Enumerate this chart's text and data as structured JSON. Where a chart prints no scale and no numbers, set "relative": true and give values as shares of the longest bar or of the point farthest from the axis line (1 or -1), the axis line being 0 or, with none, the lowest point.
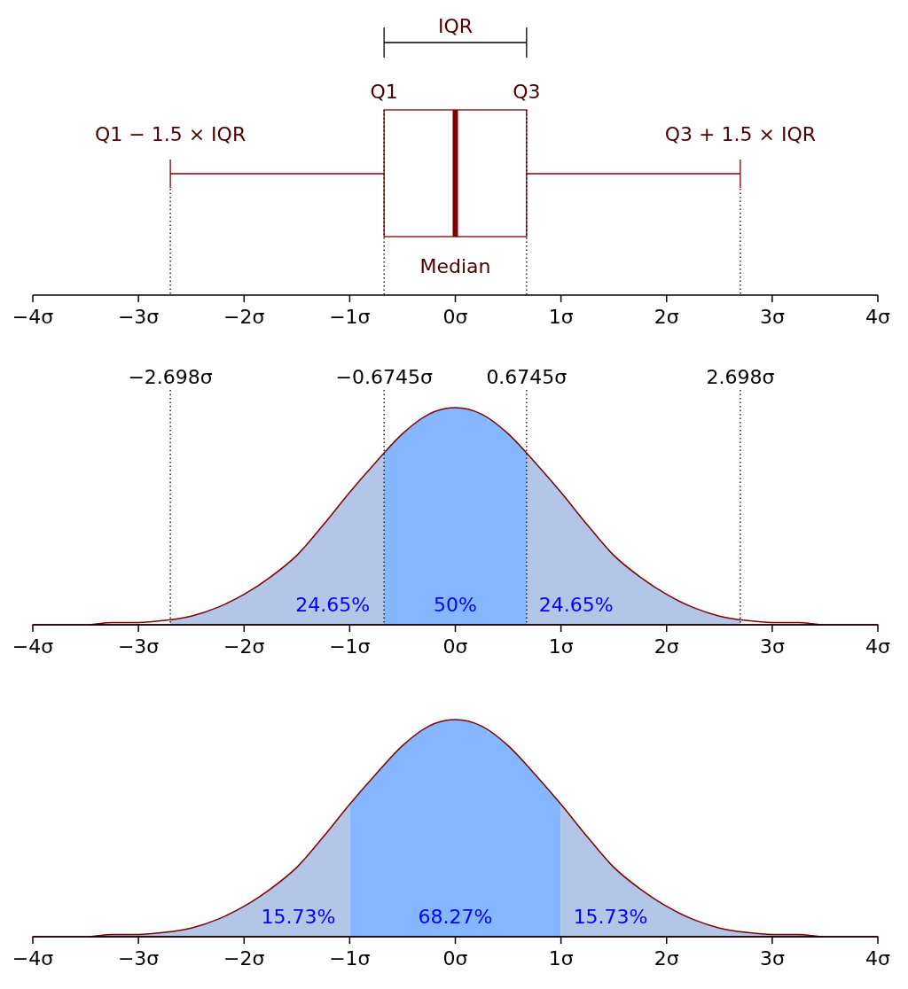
{
  "chart_data": [
    {
      "type": "box",
      "orientation": "horizontal",
      "categories": [
        null
      ],
      "color": "#800000",
      "boxes": [
        {
          "low": -2.698,
          "q1": -0.6745,
          "median": 0,
          "q3": 0.6745,
          "high": 2.698
        }
      ],
      "xlim": [
        -4,
        4
      ],
      "xticks": [
        {
          "value": -4,
          "label": "−4σ"
        },
        {
          "value": -3,
          "label": "−3σ"
        },
        {
          "value": -2,
          "label": "−2σ"
        },
        {
          "value": -1,
          "label": "−1σ"
        },
        {
          "value": 0,
          "label": "0σ"
        },
        {
          "value": 1,
          "label": "1σ"
        },
        {
          "value": 2,
          "label": "2σ"
        },
        {
          "value": 3,
          "label": "3σ"
        },
        {
          "value": 4,
          "label": "4σ"
        }
      ],
      "tick_labels": "x",
      "ref_lines": [
        {
          "axis": "x",
          "value": -2.698,
          "line_style": "dotted"
        },
        {
          "axis": "x",
          "value": -0.6745,
          "line_style": "dotted"
        },
        {
          "axis": "x",
          "value": 0.6745,
          "line_style": "dotted"
        },
        {
          "axis": "x",
          "value": 2.698,
          "line_style": "dotted"
        }
      ],
      "annotations": [
        "IQR",
        "Q1",
        "Q3",
        "Q1 − 1.5 × IQR",
        "Q3 + 1.5 × IQR",
        "Median"
      ]
    },
    {
      "type": "area",
      "relative": true,
      "x": [
        -4,
        -3.75,
        -3.5,
        -3.25,
        -3,
        -2.75,
        -2.5,
        -2.25,
        -2,
        -1.75,
        -1.5,
        -1.25,
        -1,
        -0.75,
        -0.5,
        -0.25,
        0,
        0.25,
        0.5,
        0.75,
        1,
        1.25,
        1.5,
        1.75,
        2,
        2.25,
        2.5,
        2.75,
        3,
        3.25,
        3.5,
        3.75,
        4
      ],
      "series": [
        {
          "color": "#800000",
          "values": [
            0,
            0,
            0,
            0.01,
            0.01,
            0.02,
            0.04,
            0.08,
            0.14,
            0.22,
            0.32,
            0.46,
            0.61,
            0.75,
            0.88,
            0.97,
            1,
            0.97,
            0.88,
            0.75,
            0.61,
            0.46,
            0.32,
            0.22,
            0.14,
            0.08,
            0.04,
            0.02,
            0.01,
            0.01,
            0,
            0,
            0
          ]
        }
      ],
      "xlim": [
        -4,
        4
      ],
      "xticks": [
        {
          "value": -4,
          "label": "−4σ"
        },
        {
          "value": -3,
          "label": "−3σ"
        },
        {
          "value": -2,
          "label": "−2σ"
        },
        {
          "value": -1,
          "label": "−1σ"
        },
        {
          "value": 0,
          "label": "0σ"
        },
        {
          "value": 1,
          "label": "1σ"
        },
        {
          "value": 2,
          "label": "2σ"
        },
        {
          "value": 3,
          "label": "3σ"
        },
        {
          "value": 4,
          "label": "4σ"
        }
      ],
      "ref_lines": [
        {
          "axis": "x",
          "value": -2.698,
          "label": "−2.698σ",
          "line_style": "dotted"
        },
        {
          "axis": "x",
          "value": -0.6745,
          "label": "−0.6745σ",
          "line_style": "dotted"
        },
        {
          "axis": "x",
          "value": 0.6745,
          "label": "0.6745σ",
          "line_style": "dotted"
        },
        {
          "axis": "x",
          "value": 2.698,
          "label": "2.698σ",
          "line_style": "dotted"
        }
      ],
      "bands": [
        {
          "axis": "x",
          "from": -2.698,
          "to": -0.6745,
          "label": "24.65%",
          "color": "#b0c4e6"
        },
        {
          "axis": "x",
          "from": -0.6745,
          "to": 0.6745,
          "label": "50%",
          "color": "#80b3ff"
        },
        {
          "axis": "x",
          "from": 0.6745,
          "to": 2.698,
          "label": "24.65%",
          "color": "#b0c4e6"
        }
      ]
    },
    {
      "type": "area",
      "relative": true,
      "x": [
        -4,
        -3.75,
        -3.5,
        -3.25,
        -3,
        -2.75,
        -2.5,
        -2.25,
        -2,
        -1.75,
        -1.5,
        -1.25,
        -1,
        -0.75,
        -0.5,
        -0.25,
        0,
        0.25,
        0.5,
        0.75,
        1,
        1.25,
        1.5,
        1.75,
        2,
        2.25,
        2.5,
        2.75,
        3,
        3.25,
        3.5,
        3.75,
        4
      ],
      "series": [
        {
          "color": "#800000",
          "values": [
            0,
            0,
            0,
            0.01,
            0.01,
            0.02,
            0.04,
            0.08,
            0.14,
            0.22,
            0.32,
            0.46,
            0.61,
            0.75,
            0.88,
            0.97,
            1,
            0.97,
            0.88,
            0.75,
            0.61,
            0.46,
            0.32,
            0.22,
            0.14,
            0.08,
            0.04,
            0.02,
            0.01,
            0.01,
            0,
            0,
            0
          ]
        }
      ],
      "xlim": [
        -4,
        4
      ],
      "xticks": [
        {
          "value": -4,
          "label": "−4σ"
        },
        {
          "value": -3,
          "label": "−3σ"
        },
        {
          "value": -2,
          "label": "−2σ"
        },
        {
          "value": -1,
          "label": "−1σ"
        },
        {
          "value": 0,
          "label": "0σ"
        },
        {
          "value": 1,
          "label": "1σ"
        },
        {
          "value": 2,
          "label": "2σ"
        },
        {
          "value": 3,
          "label": "3σ"
        },
        {
          "value": 4,
          "label": "4σ"
        }
      ],
      "bands": [
        {
          "axis": "x",
          "from": -4,
          "to": -1,
          "label": "15.73%",
          "color": "#b0c4e6"
        },
        {
          "axis": "x",
          "from": -1,
          "to": 1,
          "label": "68.27%",
          "color": "#80b3ff"
        },
        {
          "axis": "x",
          "from": 1,
          "to": 4,
          "label": "15.73%",
          "color": "#b0c4e6"
        }
      ]
    }
  ]
}
